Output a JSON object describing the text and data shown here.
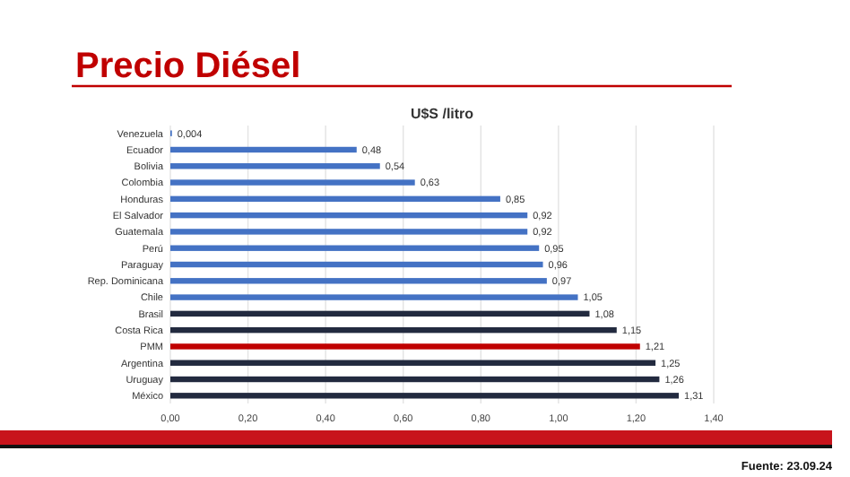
{
  "chart_data": {
    "type": "bar",
    "orientation": "horizontal",
    "title": "Precio Diésel",
    "subtitle": "U$S /litro",
    "categories": [
      "Venezuela",
      "Ecuador",
      "Bolivia",
      "Colombia",
      "Honduras",
      "El Salvador",
      "Guatemala",
      "Perú",
      "Paraguay",
      "Rep. Dominicana",
      "Chile",
      "Brasil",
      "Costa Rica",
      "PMM",
      "Argentina",
      "Uruguay",
      "México"
    ],
    "values": [
      0.004,
      0.48,
      0.54,
      0.63,
      0.85,
      0.92,
      0.92,
      0.95,
      0.96,
      0.97,
      1.05,
      1.08,
      1.15,
      1.21,
      1.25,
      1.26,
      1.31
    ],
    "value_labels": [
      "0,004",
      "0,48",
      "0,54",
      "0,63",
      "0,85",
      "0,92",
      "0,92",
      "0,95",
      "0,96",
      "0,97",
      "1,05",
      "1,08",
      "1,15",
      "1,21",
      "1,25",
      "1,26",
      "1,31"
    ],
    "colors": [
      "#4472c4",
      "#4472c4",
      "#4472c4",
      "#4472c4",
      "#4472c4",
      "#4472c4",
      "#4472c4",
      "#4472c4",
      "#4472c4",
      "#4472c4",
      "#4472c4",
      "#222a3f",
      "#222a3f",
      "#c00000",
      "#222a3f",
      "#222a3f",
      "#222a3f"
    ],
    "xlim": [
      0,
      1.4
    ],
    "xticks": [
      {
        "value": 0,
        "label": "0,00"
      },
      {
        "value": 0.2,
        "label": "0,20"
      },
      {
        "value": 0.4,
        "label": "0,40"
      },
      {
        "value": 0.6,
        "label": "0,60"
      },
      {
        "value": 0.8,
        "label": "0,80"
      },
      {
        "value": 1,
        "label": "1,00"
      },
      {
        "value": 1.2,
        "label": "1,20"
      },
      {
        "value": 1.4,
        "label": "1,40"
      }
    ],
    "grid": "x",
    "annotations": [
      "Fuente: 23.09.24"
    ]
  }
}
